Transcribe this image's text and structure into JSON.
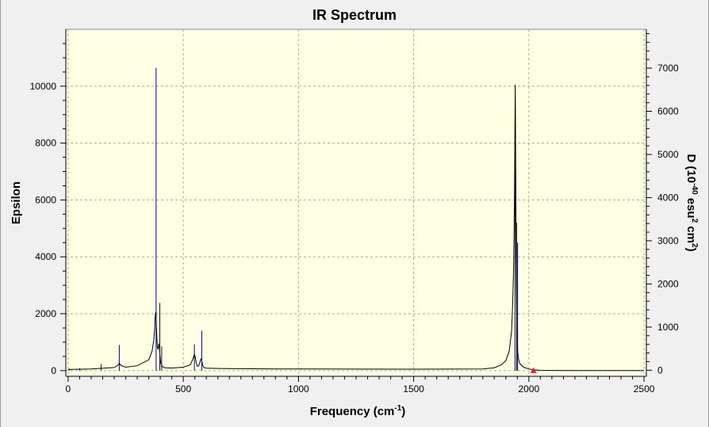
{
  "chart_data": {
    "type": "line",
    "title": "IR Spectrum",
    "xlabel": "Frequency (cm",
    "xlabel_sup": "-1",
    "xlabel_end": ")",
    "ylabel": "Epsilon",
    "y2label_parts": [
      "D (10",
      "-40",
      " esu",
      "2",
      " cm",
      "2",
      ")"
    ],
    "xlim": [
      -10,
      2510
    ],
    "ylim": [
      -200,
      12000
    ],
    "y2lim": [
      -140,
      7900
    ],
    "x_ticks": [
      0,
      500,
      1000,
      1500,
      2000,
      2500
    ],
    "y_ticks": [
      0,
      2000,
      4000,
      6000,
      8000,
      10000
    ],
    "y2_ticks": [
      0,
      1000,
      2000,
      3000,
      4000,
      5000,
      6000,
      7000
    ],
    "x_tick_labels": [
      "0",
      "500",
      "1000",
      "1500",
      "2000",
      "2500"
    ],
    "y_tick_labels": [
      "0",
      "2000",
      "4000",
      "6000",
      "8000",
      "10000"
    ],
    "y2_tick_labels": [
      "0",
      "1000",
      "2000",
      "3000",
      "4000",
      "5000",
      "6000",
      "7000"
    ],
    "grid": true,
    "series": [
      {
        "kind": "spectrum",
        "color": "#000000",
        "x": [
          0,
          100,
          200,
          215,
          222,
          230,
          250,
          300,
          350,
          365,
          372,
          376,
          378,
          380,
          382,
          384,
          386,
          388,
          390,
          392,
          394,
          396,
          398,
          400,
          402,
          405,
          410,
          420,
          450,
          500,
          530,
          540,
          546,
          549,
          552,
          555,
          560,
          566,
          571,
          575,
          578,
          581,
          585,
          590,
          600,
          650,
          700,
          800,
          900,
          1000,
          1500,
          1800,
          1850,
          1880,
          1900,
          1915,
          1925,
          1930,
          1934,
          1937,
          1939,
          1940,
          1941,
          1942,
          1943,
          1944,
          1945,
          1946,
          1947,
          1949,
          1952,
          1955,
          1960,
          1970,
          1980,
          2000,
          2020,
          2050,
          2100,
          2200,
          2300,
          2400,
          2500
        ],
        "y": [
          40,
          60,
          110,
          180,
          260,
          180,
          120,
          170,
          380,
          700,
          1100,
          1500,
          1900,
          2050,
          1900,
          1400,
          1000,
          800,
          760,
          820,
          950,
          850,
          600,
          400,
          270,
          200,
          140,
          100,
          90,
          120,
          200,
          380,
          520,
          560,
          480,
          320,
          160,
          160,
          260,
          380,
          420,
          300,
          170,
          110,
          85,
          75,
          70,
          65,
          60,
          55,
          50,
          60,
          100,
          200,
          350,
          700,
          1400,
          2400,
          3700,
          5800,
          7800,
          9000,
          10050,
          8600,
          7000,
          5500,
          4000,
          2800,
          1900,
          1100,
          650,
          420,
          260,
          170,
          110,
          60,
          30,
          10,
          5,
          3,
          2,
          1,
          0
        ]
      },
      {
        "kind": "sticks",
        "color": "#00008b",
        "x": [
          5,
          50,
          143,
          222,
          382,
          398,
          406,
          548,
          580,
          1940,
          1947,
          1951
        ],
        "y": [
          70,
          90,
          230,
          900,
          10650,
          2380,
          860,
          920,
          1400,
          8200,
          5200,
          4500
        ]
      }
    ],
    "markers": [
      {
        "kind": "triangle",
        "color": "#e02020",
        "x": 2020,
        "y": 0
      }
    ]
  }
}
